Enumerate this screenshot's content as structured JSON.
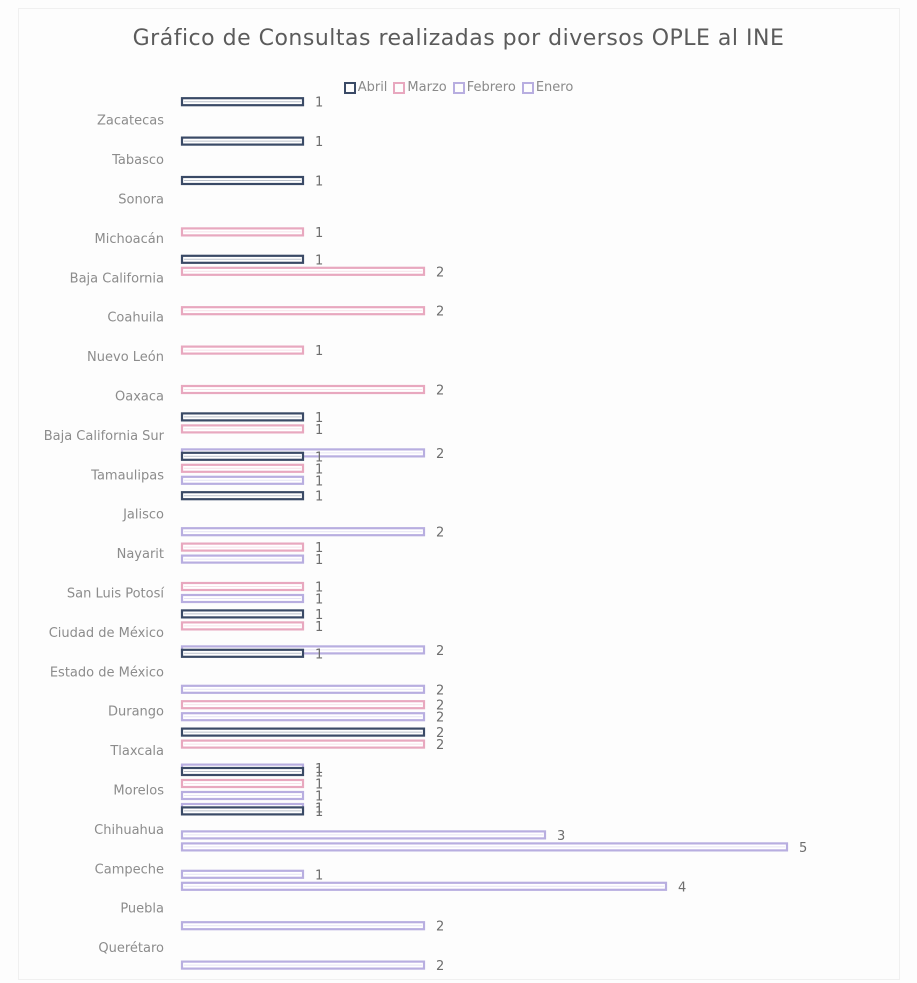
{
  "chart_data": {
    "type": "bar",
    "orientation": "horizontal",
    "title": "Gráfico de Consultas realizadas por diversos OPLE al INE",
    "legend": {
      "position": "top"
    },
    "grid": false,
    "xlim": [
      0,
      5
    ],
    "categories": [
      "Zacatecas",
      "Tabasco",
      "Sonora",
      "Michoacán",
      "Baja California",
      "Coahuila",
      "Nuevo León",
      "Oaxaca",
      "Baja California Sur",
      "Tamaulipas",
      "Jalisco",
      "Nayarit",
      "San Luis Potosí",
      "Ciudad de México",
      "Estado de México",
      "Durango",
      "Tlaxcala",
      "Morelos",
      "Chihuahua",
      "Campeche",
      "Puebla",
      "Querétaro"
    ],
    "series": [
      {
        "name": "Abril",
        "color": "#3a4a66",
        "values": [
          1,
          1,
          1,
          null,
          1,
          null,
          null,
          null,
          1,
          1,
          1,
          null,
          null,
          1,
          1,
          null,
          2,
          1,
          1,
          null,
          null,
          null
        ]
      },
      {
        "name": "Marzo",
        "color": "#e8a8bf",
        "values": [
          null,
          null,
          null,
          1,
          2,
          2,
          1,
          2,
          1,
          1,
          null,
          1,
          1,
          1,
          null,
          2,
          2,
          1,
          null,
          null,
          null,
          null
        ]
      },
      {
        "name": "Febrero",
        "color": "#b8aee0",
        "values": [
          null,
          null,
          null,
          null,
          null,
          null,
          null,
          null,
          null,
          1,
          null,
          1,
          1,
          null,
          null,
          2,
          null,
          1,
          3,
          1,
          null,
          null
        ]
      },
      {
        "name": "Enero",
        "color": "#b8aee0",
        "values": [
          null,
          null,
          null,
          null,
          null,
          null,
          null,
          null,
          2,
          null,
          2,
          null,
          null,
          2,
          2,
          null,
          1,
          1,
          5,
          4,
          2,
          2
        ]
      }
    ]
  }
}
